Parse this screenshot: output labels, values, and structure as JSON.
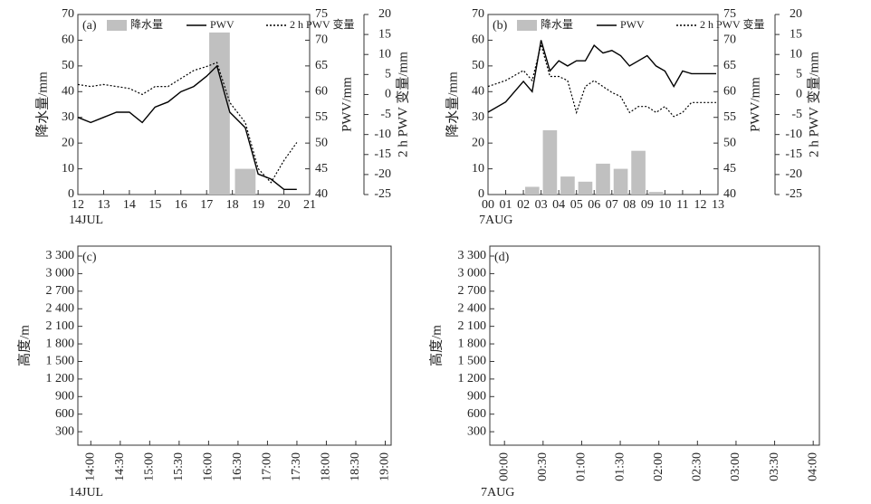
{
  "chart_data": [
    {
      "type": "bar-line",
      "panel_label": "(a)",
      "x_date_label": "14JUL",
      "ylabel": "降水量/mm",
      "y2label": "PWV/mm",
      "y3label": "2 h PWV 变量/mm",
      "xlim": [
        12,
        21
      ],
      "xticks": [
        12,
        13,
        14,
        15,
        16,
        17,
        18,
        19,
        20,
        21
      ],
      "ylim": [
        0,
        70
      ],
      "yticks": [
        0,
        10,
        20,
        30,
        40,
        50,
        60,
        70
      ],
      "y2lim": [
        40,
        75
      ],
      "y2ticks": [
        40,
        45,
        50,
        55,
        60,
        65,
        70,
        75
      ],
      "y3lim": [
        -25,
        20
      ],
      "y3ticks": [
        -25,
        -20,
        -15,
        -10,
        -5,
        0,
        5,
        10,
        15,
        20
      ],
      "series": [
        {
          "name": "降水量",
          "kind": "bar",
          "color": "#c0c0c0",
          "x": [
            17.5,
            18.5
          ],
          "values": [
            63,
            10
          ]
        },
        {
          "name": "PWV",
          "kind": "line",
          "axis": "y2",
          "color": "#000000",
          "dash": "solid",
          "x": [
            12,
            12.5,
            13,
            13.5,
            14,
            14.5,
            15,
            15.5,
            16,
            16.5,
            17,
            17.4,
            17.9,
            18.5,
            19,
            19.5,
            20,
            20.5
          ],
          "values": [
            55,
            54,
            55,
            56,
            56,
            54,
            57,
            58,
            60,
            61,
            63,
            65,
            56,
            53,
            44,
            43,
            41,
            41
          ]
        },
        {
          "name": "2 h PWV 变量",
          "kind": "line",
          "axis": "y3",
          "color": "#000000",
          "dash": "dotted",
          "x": [
            12,
            12.5,
            13,
            13.5,
            14,
            14.5,
            15,
            15.5,
            16,
            16.5,
            17,
            17.4,
            17.9,
            18.5,
            19,
            19.5,
            20,
            20.5
          ],
          "values": [
            2.5,
            2,
            2.5,
            2,
            1.5,
            0,
            2,
            2,
            4,
            6,
            7,
            8,
            -2,
            -7,
            -18.5,
            -22,
            -16.5,
            -12
          ]
        }
      ]
    },
    {
      "type": "bar-line",
      "panel_label": "(b)",
      "x_date_label": "7AUG",
      "ylabel": "降水量/mm",
      "y2label": "PWV/mm",
      "y3label": "2 h PWV 变量/mm",
      "xlim": [
        0,
        13
      ],
      "xticks": [
        {
          "value": 0,
          "label": "00"
        },
        {
          "value": 1,
          "label": "01"
        },
        {
          "value": 2,
          "label": "02"
        },
        {
          "value": 3,
          "label": "03"
        },
        {
          "value": 4,
          "label": "04"
        },
        {
          "value": 5,
          "label": "05"
        },
        {
          "value": 6,
          "label": "06"
        },
        {
          "value": 7,
          "label": "07"
        },
        {
          "value": 8,
          "label": "08"
        },
        {
          "value": 9,
          "label": "09"
        },
        10,
        11,
        12,
        13
      ],
      "ylim": [
        0,
        70
      ],
      "yticks": [
        0,
        10,
        20,
        30,
        40,
        50,
        60,
        70
      ],
      "y2lim": [
        40,
        75
      ],
      "y2ticks": [
        40,
        45,
        50,
        55,
        60,
        65,
        70,
        75
      ],
      "y3lim": [
        -25,
        20
      ],
      "y3ticks": [
        -25,
        -20,
        -15,
        -10,
        -5,
        0,
        5,
        10,
        15,
        20
      ],
      "series": [
        {
          "name": "降水量",
          "kind": "bar",
          "color": "#c0c0c0",
          "x": [
            2.5,
            3.5,
            4.5,
            5.5,
            6.5,
            7.5,
            8.5,
            9.5
          ],
          "values": [
            3,
            25,
            7,
            5,
            12,
            10,
            17,
            1
          ]
        },
        {
          "name": "PWV",
          "kind": "line",
          "axis": "y2",
          "color": "#000000",
          "dash": "solid",
          "x": [
            0,
            1,
            2,
            2.5,
            3,
            3.5,
            4,
            4.5,
            5,
            5.5,
            6,
            6.5,
            7,
            7.5,
            8,
            8.5,
            9,
            9.5,
            10,
            10.5,
            11,
            11.5,
            12,
            12.9
          ],
          "values": [
            56,
            58,
            62,
            60,
            70,
            64,
            66,
            65,
            66,
            66,
            69,
            67.5,
            68,
            67,
            65,
            66,
            67,
            65,
            64,
            61,
            64,
            63.5,
            63.5,
            63.5
          ]
        },
        {
          "name": "2 h PWV 变量",
          "kind": "line",
          "axis": "y3",
          "color": "#000000",
          "dash": "dotted",
          "x": [
            0,
            1,
            2,
            2.5,
            3,
            3.5,
            4,
            4.5,
            5,
            5.5,
            6,
            6.5,
            7,
            7.5,
            8,
            8.5,
            9,
            9.5,
            10,
            10.5,
            11,
            11.5,
            12,
            12.9
          ],
          "values": [
            2,
            3.5,
            6,
            3.5,
            12.5,
            4.5,
            4.5,
            3.5,
            -4.5,
            2,
            3.5,
            2,
            0.5,
            -0.5,
            -4.5,
            -3,
            -3,
            -4.5,
            -3,
            -5.5,
            -4.5,
            -2,
            -2,
            -2
          ]
        }
      ]
    },
    {
      "type": "wind-profile",
      "panel_label": "(c)",
      "x_date_label": "14JUL",
      "ylabel": "高度/m",
      "xlim": [
        13.78,
        19.1
      ],
      "xticks": [
        {
          "value": 14,
          "label": "14:00"
        },
        {
          "value": 14.5,
          "label": "14:30"
        },
        {
          "value": 15,
          "label": "15:00"
        },
        {
          "value": 15.5,
          "label": "15:30"
        },
        {
          "value": 16,
          "label": "16:00"
        },
        {
          "value": 16.5,
          "label": "16:30"
        },
        {
          "value": 17,
          "label": "17:00"
        },
        {
          "value": 17.5,
          "label": "17:30"
        },
        {
          "value": 18,
          "label": "18:00"
        },
        {
          "value": 18.5,
          "label": "18:30"
        },
        {
          "value": 19,
          "label": "19:00"
        }
      ],
      "ylim": [
        70,
        3470
      ],
      "yticks": [
        300,
        600,
        900,
        {
          "value": 1200,
          "label": "1 200"
        },
        {
          "value": 1500,
          "label": "1 500"
        },
        {
          "value": 1800,
          "label": "1 800"
        },
        {
          "value": 2100,
          "label": "2 100"
        },
        {
          "value": 2400,
          "label": "2 400"
        },
        {
          "value": 2700,
          "label": "2 700"
        },
        {
          "value": 3000,
          "label": "3 000"
        },
        {
          "value": 3300,
          "label": "3 300"
        }
      ]
    },
    {
      "type": "wind-profile",
      "panel_label": "(d)",
      "x_date_label": "7AUG",
      "ylabel": "高度/m",
      "xlim": [
        -0.19,
        4.08
      ],
      "xticks": [
        {
          "value": 0,
          "label": "00:00"
        },
        {
          "value": 0.5,
          "label": "00:30"
        },
        {
          "value": 1,
          "label": "01:00"
        },
        {
          "value": 1.5,
          "label": "01:30"
        },
        {
          "value": 2,
          "label": "02:00"
        },
        {
          "value": 2.5,
          "label": "02:30"
        },
        {
          "value": 3,
          "label": "03:00"
        },
        {
          "value": 3.5,
          "label": "03:30"
        },
        {
          "value": 4,
          "label": "04:00"
        }
      ],
      "ylim": [
        70,
        3470
      ],
      "yticks": [
        300,
        600,
        900,
        {
          "value": 1200,
          "label": "1 200"
        },
        {
          "value": 1500,
          "label": "1 500"
        },
        {
          "value": 1800,
          "label": "1 800"
        },
        {
          "value": 2100,
          "label": "2 100"
        },
        {
          "value": 2400,
          "label": "2 400"
        },
        {
          "value": 2700,
          "label": "2 700"
        },
        {
          "value": 3000,
          "label": "3 000"
        },
        {
          "value": 3300,
          "label": "3 300"
        }
      ]
    }
  ]
}
